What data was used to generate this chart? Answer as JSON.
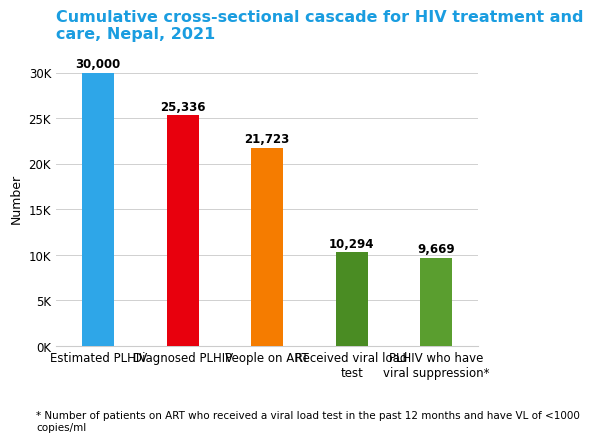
{
  "title": "Cumulative cross-sectional cascade for HIV treatment and\ncare, Nepal, 2021",
  "title_color": "#1a9de0",
  "categories": [
    "Estimated PLHIV",
    "Diagnosed PLHIV",
    "People on ART",
    "Received viral load\ntest",
    "PLHIV who have\nviral suppression*"
  ],
  "values": [
    30000,
    25336,
    21723,
    10294,
    9669
  ],
  "labels": [
    "30,000",
    "25,336",
    "21,723",
    "10,294",
    "9,669"
  ],
  "bar_colors": [
    "#2ea6e8",
    "#e8000d",
    "#f57c00",
    "#4a8c23",
    "#5a9e2f"
  ],
  "ylabel": "Number",
  "ylim": [
    0,
    32500
  ],
  "yticks": [
    0,
    5000,
    10000,
    15000,
    20000,
    25000,
    30000
  ],
  "ytick_labels": [
    "0K",
    "5K",
    "10K",
    "15K",
    "20K",
    "25K",
    "30K"
  ],
  "footnote": "* Number of patients on ART who received a viral load test in the past 12 months and have VL of <1000\ncopies/ml",
  "background_color": "#ffffff",
  "grid_color": "#d0d0d0",
  "title_fontsize": 11.5,
  "label_fontsize": 8.5,
  "tick_fontsize": 8.5,
  "ylabel_fontsize": 9,
  "footnote_fontsize": 7.5,
  "bar_width": 0.38
}
